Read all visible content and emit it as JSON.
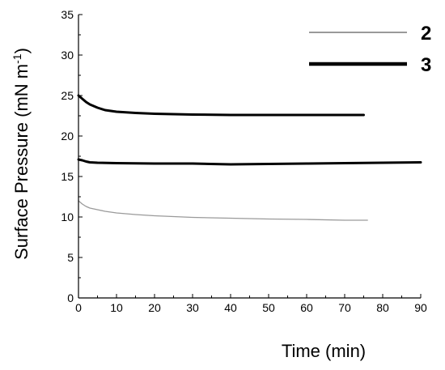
{
  "chart_data": {
    "type": "line",
    "xlabel": "Time (min)",
    "ylabel_main": "Surface Pressure (mN m",
    "ylabel_sup": "-1",
    "ylabel_end": ")",
    "xlim": [
      0,
      90
    ],
    "ylim": [
      0,
      35
    ],
    "xticks": [
      0,
      10,
      20,
      30,
      40,
      50,
      60,
      70,
      80,
      90
    ],
    "yticks": [
      0,
      5,
      10,
      15,
      20,
      25,
      30,
      35
    ],
    "grid": false,
    "legend_position": "top-right",
    "series": [
      {
        "name": "2",
        "color": "#9a9a9a",
        "weight": "thin",
        "in_legend": true,
        "x": [
          0,
          1,
          2,
          3,
          5,
          7,
          10,
          15,
          20,
          25,
          30,
          40,
          50,
          60,
          70,
          76
        ],
        "y": [
          12.0,
          11.6,
          11.3,
          11.1,
          10.9,
          10.7,
          10.5,
          10.3,
          10.15,
          10.05,
          9.95,
          9.85,
          9.75,
          9.7,
          9.6,
          9.6
        ]
      },
      {
        "name": "3",
        "color": "#000000",
        "weight": "thick",
        "in_legend": true,
        "x": [
          0,
          1,
          2,
          3,
          5,
          7,
          10,
          15,
          20,
          25,
          30,
          40,
          50,
          60,
          70,
          75
        ],
        "y": [
          25.0,
          24.6,
          24.2,
          23.9,
          23.5,
          23.2,
          23.0,
          22.85,
          22.75,
          22.7,
          22.65,
          22.6,
          22.6,
          22.6,
          22.6,
          22.6
        ]
      },
      {
        "name": "",
        "color": "#000000",
        "weight": "thick",
        "in_legend": false,
        "x": [
          0,
          1,
          2,
          3,
          5,
          10,
          20,
          30,
          40,
          50,
          60,
          70,
          80,
          90
        ],
        "y": [
          17.1,
          17.0,
          16.85,
          16.75,
          16.7,
          16.65,
          16.6,
          16.6,
          16.5,
          16.55,
          16.6,
          16.65,
          16.7,
          16.75
        ]
      }
    ]
  }
}
